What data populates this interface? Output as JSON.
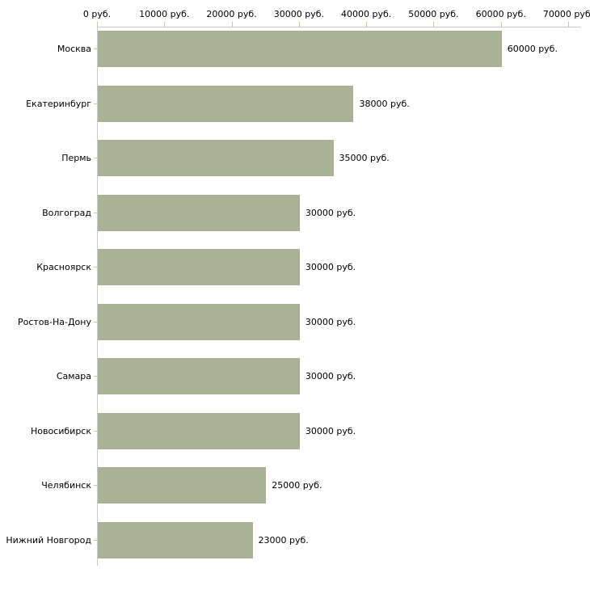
{
  "chart_data": {
    "type": "bar",
    "orientation": "horizontal",
    "title": "",
    "xlabel": "",
    "ylabel": "",
    "unit": "руб.",
    "xlim": [
      0,
      70000
    ],
    "x_tick_values": [
      0,
      10000,
      20000,
      30000,
      40000,
      50000,
      60000,
      70000
    ],
    "x_tick_labels": [
      "0 руб.",
      "10000 руб.",
      "20000 руб.",
      "30000 руб.",
      "40000 руб.",
      "50000 руб.",
      "60000 руб.",
      "70000 руб."
    ],
    "categories": [
      "Москва",
      "Екатеринбург",
      "Пермь",
      "Волгоград",
      "Красноярск",
      "Ростов-На-Дону",
      "Самара",
      "Новосибирск",
      "Челябинск",
      "Нижний Новгород"
    ],
    "values": [
      60000,
      38000,
      35000,
      30000,
      30000,
      30000,
      30000,
      30000,
      25000,
      23000
    ],
    "value_labels": [
      "60000 руб.",
      "38000 руб.",
      "35000 руб.",
      "30000 руб.",
      "30000 руб.",
      "30000 руб.",
      "30000 руб.",
      "30000 руб.",
      "25000 руб.",
      "23000 руб."
    ],
    "grid": false,
    "legend": "none",
    "axis_labels_position": "top",
    "value_label_position": "right-of-bar",
    "colors": {
      "bar": "#abb194",
      "axis_line": "#c9c9c9",
      "tick": "#ccc9a0",
      "text": "#000000",
      "background": "#ffffff"
    }
  }
}
